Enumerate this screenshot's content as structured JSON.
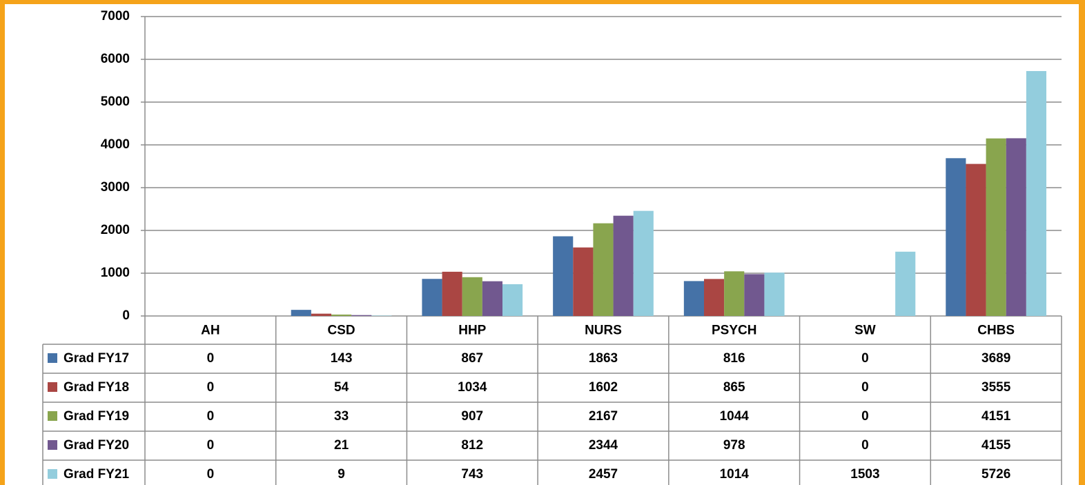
{
  "chart_data": {
    "type": "bar",
    "categories": [
      "AH",
      "CSD",
      "HHP",
      "NURS",
      "PSYCH",
      "SW",
      "CHBS"
    ],
    "series": [
      {
        "name": "Grad FY17",
        "color": "#4572a7",
        "values": [
          0,
          143,
          867,
          1863,
          816,
          0,
          3689
        ]
      },
      {
        "name": "Grad FY18",
        "color": "#aa4643",
        "values": [
          0,
          54,
          1034,
          1602,
          865,
          0,
          3555
        ]
      },
      {
        "name": "Grad FY19",
        "color": "#89a54e",
        "values": [
          0,
          33,
          907,
          2167,
          1044,
          0,
          4151
        ]
      },
      {
        "name": "Grad FY20",
        "color": "#71588f",
        "values": [
          0,
          21,
          812,
          2344,
          978,
          0,
          4155
        ]
      },
      {
        "name": "Grad FY21",
        "color": "#93cddd",
        "values": [
          0,
          9,
          743,
          2457,
          1014,
          1503,
          5726
        ]
      }
    ],
    "ylim": [
      0,
      7000
    ],
    "yticks": [
      0,
      1000,
      2000,
      3000,
      4000,
      5000,
      6000,
      7000
    ],
    "grid": true,
    "data_table": true
  }
}
